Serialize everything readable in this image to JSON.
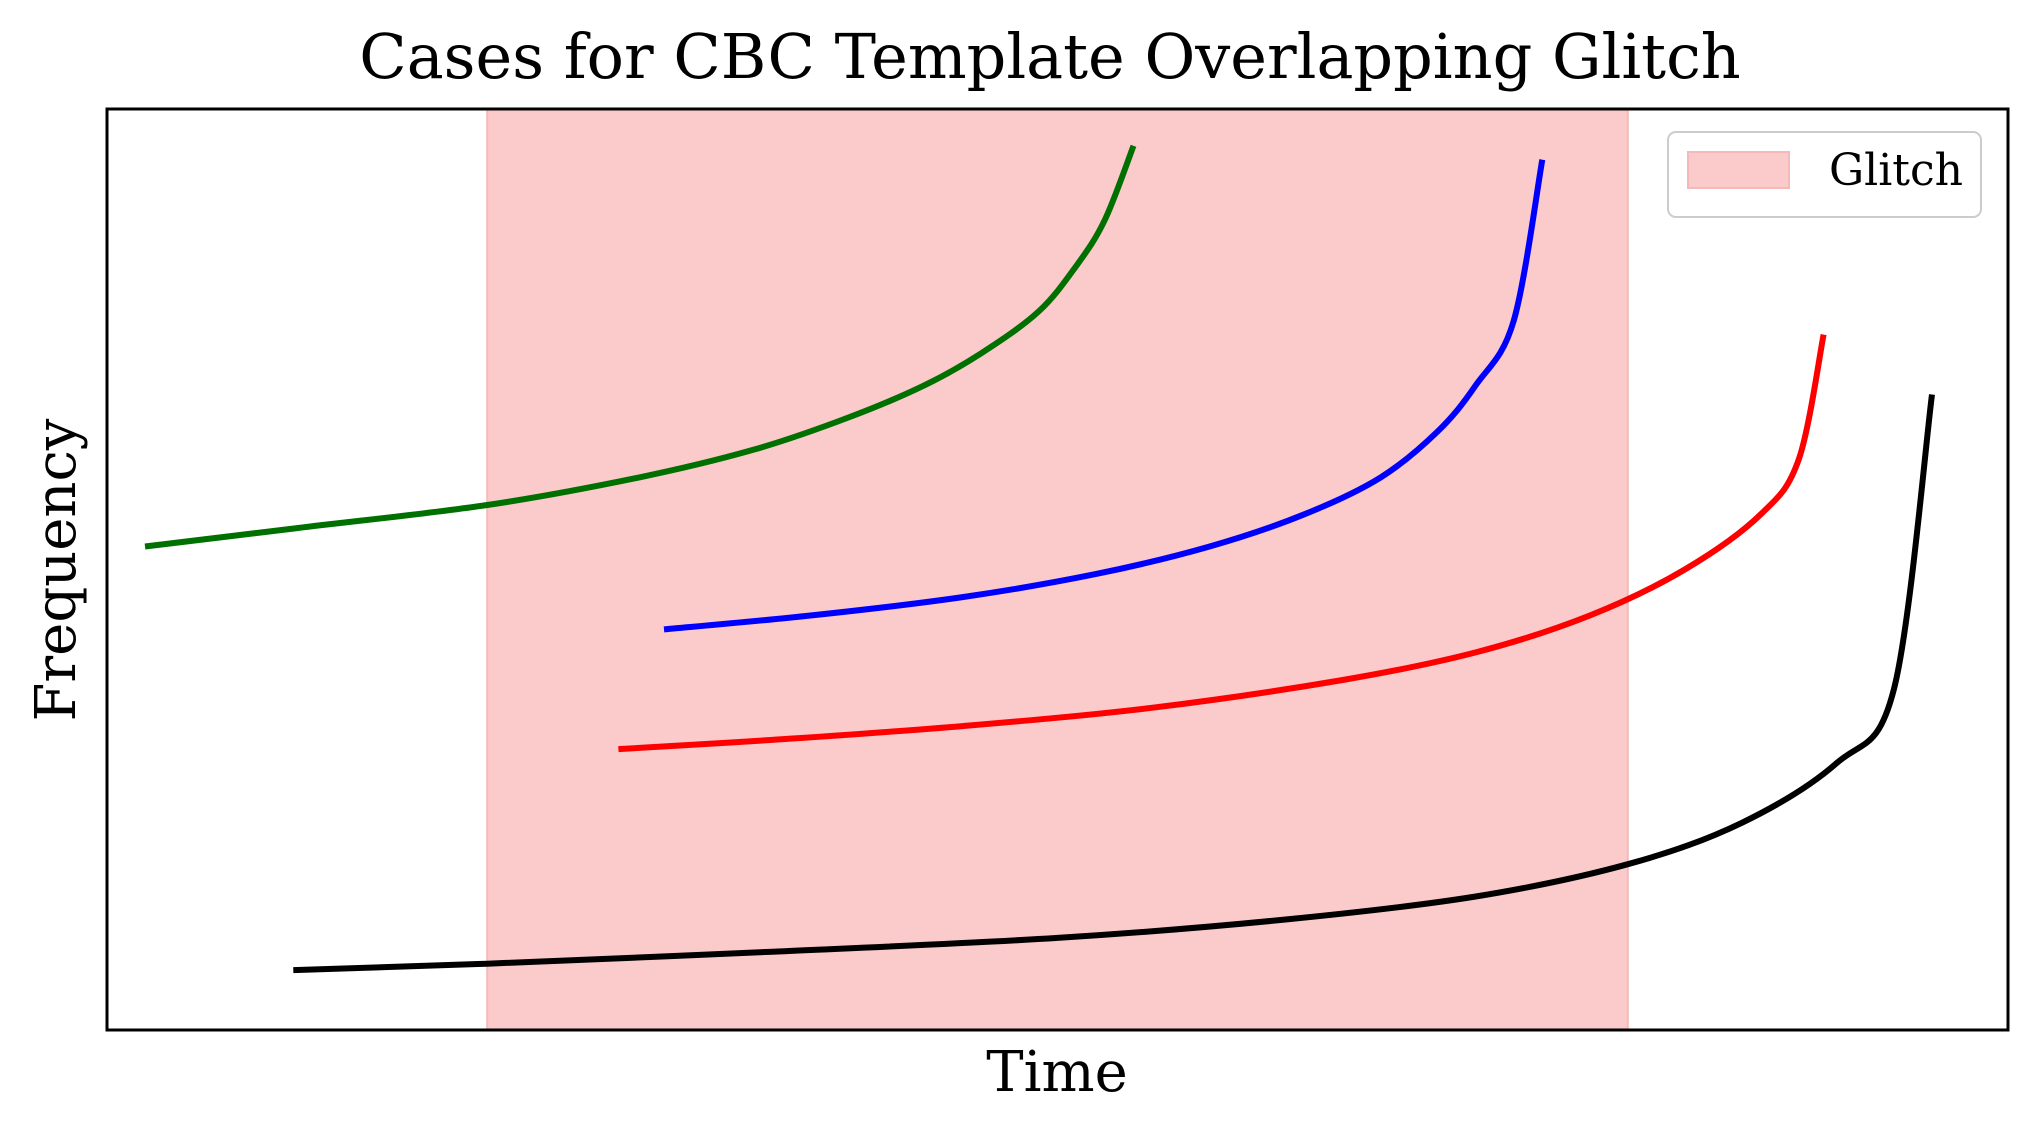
{
  "chart_data": {
    "type": "line",
    "title": "Cases for CBC Template Overlapping Glitch",
    "xlabel": "Time",
    "ylabel": "Frequency",
    "xlim": [
      0,
      1
    ],
    "ylim": [
      0,
      1
    ],
    "x_ticks": false,
    "y_ticks": false,
    "grid": false,
    "legend": {
      "placement": "upper right",
      "entries": [
        "Glitch"
      ]
    },
    "glitch_region": {
      "x": [
        0.2,
        0.8
      ],
      "label": "Glitch",
      "color": "#f8a0a0",
      "opacity": 0.55
    },
    "series": [
      {
        "color": "#007000",
        "x": [
          0.02,
          0.1,
          0.2,
          0.28,
          0.34,
          0.39,
          0.43,
          0.46,
          0.49,
          0.51,
          0.525,
          0.54
        ],
        "y": [
          0.525,
          0.545,
          0.57,
          0.6,
          0.63,
          0.665,
          0.7,
          0.735,
          0.78,
          0.83,
          0.88,
          0.96
        ]
      },
      {
        "color": "#0000ff",
        "x": [
          0.293,
          0.37,
          0.45,
          0.52,
          0.58,
          0.63,
          0.67,
          0.7,
          0.72,
          0.74,
          0.755
        ],
        "y": [
          0.435,
          0.45,
          0.47,
          0.495,
          0.525,
          0.56,
          0.6,
          0.65,
          0.7,
          0.77,
          0.945
        ]
      },
      {
        "color": "#ff0000",
        "x": [
          0.269,
          0.35,
          0.45,
          0.55,
          0.65,
          0.72,
          0.78,
          0.83,
          0.87,
          0.89,
          0.903
        ],
        "y": [
          0.305,
          0.315,
          0.33,
          0.35,
          0.38,
          0.41,
          0.45,
          0.5,
          0.56,
          0.62,
          0.755
        ]
      },
      {
        "color": "#000000",
        "x": [
          0.098,
          0.2,
          0.35,
          0.5,
          0.62,
          0.72,
          0.8,
          0.86,
          0.91,
          0.94,
          0.96
        ],
        "y": [
          0.065,
          0.072,
          0.085,
          0.1,
          0.12,
          0.145,
          0.18,
          0.225,
          0.29,
          0.37,
          0.69
        ]
      }
    ]
  }
}
